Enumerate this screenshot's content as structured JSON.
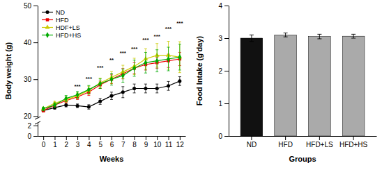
{
  "chart_data": [
    {
      "type": "line",
      "y_label": "Body weight (g)",
      "x": [
        0,
        1,
        2,
        3,
        4,
        5,
        6,
        7,
        8,
        9,
        10,
        11,
        12
      ],
      "series": [
        {
          "name": "ND",
          "color": "#000000",
          "marker": "circle",
          "values": [
            21.5,
            22.3,
            23.0,
            22.8,
            22.5,
            24.0,
            25.5,
            26.5,
            27.5,
            27.5,
            27.5,
            28.2,
            29.5
          ],
          "errors": [
            0.4,
            0.4,
            0.5,
            0.5,
            0.6,
            0.8,
            1.0,
            1.5,
            1.2,
            1.2,
            1.2,
            1.2,
            1.2
          ]
        },
        {
          "name": "HFD",
          "color": "#ee0000",
          "marker": "square",
          "values": [
            21.5,
            23.0,
            24.2,
            25.2,
            26.5,
            28.5,
            30.0,
            31.5,
            33.0,
            34.0,
            34.5,
            35.0,
            35.5
          ],
          "errors": [
            0.4,
            0.5,
            0.6,
            0.7,
            0.9,
            1.0,
            1.2,
            1.4,
            1.5,
            1.5,
            1.5,
            1.8,
            1.8
          ]
        },
        {
          "name": "HDF+LS",
          "color": "#cccc00",
          "marker": "triangle",
          "values": [
            22.0,
            23.5,
            24.5,
            25.5,
            27.0,
            29.0,
            30.5,
            32.0,
            33.5,
            35.5,
            36.5,
            36.5,
            36.0
          ],
          "errors": [
            0.4,
            0.5,
            0.7,
            0.8,
            1.1,
            1.3,
            1.6,
            1.8,
            2.2,
            2.8,
            3.2,
            3.8,
            4.2
          ]
        },
        {
          "name": "HFD+HS",
          "color": "#00aa00",
          "marker": "diamond",
          "values": [
            22.0,
            23.0,
            24.8,
            25.8,
            27.2,
            28.8,
            30.0,
            31.0,
            33.0,
            34.5,
            35.0,
            35.5,
            36.0
          ],
          "errors": [
            0.4,
            0.6,
            0.8,
            0.9,
            1.1,
            1.3,
            1.6,
            1.8,
            2.2,
            2.8,
            3.0,
            3.2,
            3.5
          ]
        }
      ],
      "xlim": [
        -0.5,
        12.5
      ],
      "ylim": [
        19.5,
        50
      ],
      "yticks": [
        20,
        30,
        40,
        50
      ],
      "tick_labels": "y",
      "legend": "upper left",
      "annotations": [
        {
          "x": 3,
          "y": 27.5,
          "text": "***"
        },
        {
          "x": 4,
          "y": 29.5,
          "text": "***"
        },
        {
          "x": 5,
          "y": 32.5,
          "text": "***"
        },
        {
          "x": 6,
          "y": 34.5,
          "text": "**"
        },
        {
          "x": 7,
          "y": 36.5,
          "text": "***"
        },
        {
          "x": 8,
          "y": 37.5,
          "text": "***"
        },
        {
          "x": 9,
          "y": 40.0,
          "text": "***"
        },
        {
          "x": 10,
          "y": 41.0,
          "text": "***"
        },
        {
          "x": 11,
          "y": 43.0,
          "text": "***"
        },
        {
          "x": 12,
          "y": 44.5,
          "text": "***"
        }
      ]
    },
    {
      "type": "line",
      "x_label": "Weeks",
      "xlim": [
        -0.5,
        12.5
      ],
      "xticks": [
        0,
        1,
        2,
        3,
        4,
        5,
        6,
        7,
        8,
        9,
        10,
        11,
        12
      ],
      "ylim": [
        0,
        2.5
      ],
      "yticks": [
        0,
        2
      ]
    },
    {
      "type": "bar",
      "x_label": "Groups",
      "y_label": "Food Intake (g'day)",
      "categories": [
        "ND",
        "HFD",
        "HFD+LS",
        "HFD+HS"
      ],
      "values": [
        3.0,
        3.1,
        3.05,
        3.06
      ],
      "errors": [
        0.1,
        0.06,
        0.07,
        0.06
      ],
      "colors": [
        "#111111",
        "#aaaaaa",
        "#aaaaaa",
        "#aaaaaa"
      ],
      "ylim": [
        0,
        4
      ],
      "yticks": [
        0,
        1,
        2,
        3,
        4
      ]
    }
  ]
}
